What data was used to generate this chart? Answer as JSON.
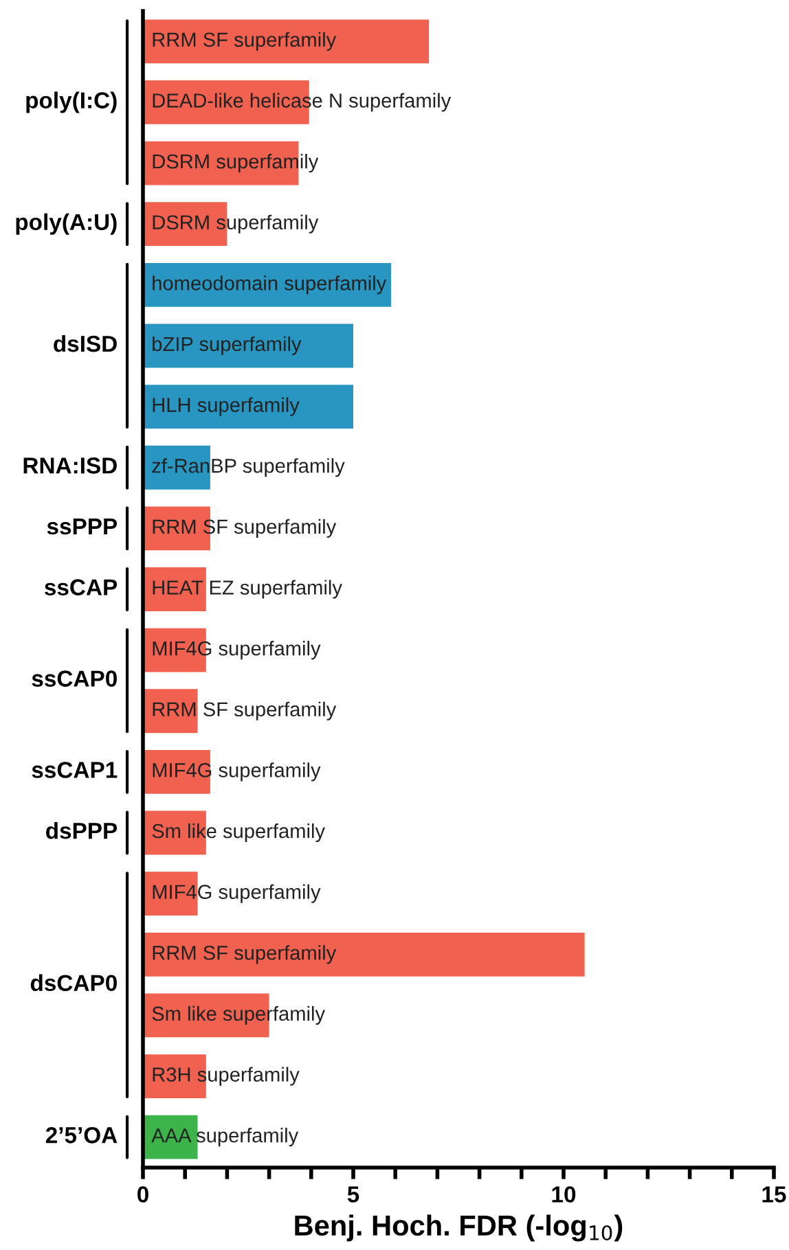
{
  "chart_data": {
    "type": "bar",
    "orientation": "horizontal",
    "xlabel": "Benj. Hoch. FDR (-log$_{10}$)",
    "categories": [
      "RRM SF superfamily",
      "DEAD-like helicase N superfamily",
      "DSRM superfamily",
      "DSRM superfamily",
      "homeodomain superfamily",
      "bZIP superfamily",
      "HLH superfamily",
      "zf-RanBP superfamily",
      "RRM SF superfamily",
      "HEAT EZ superfamily",
      "MIF4G superfamily",
      "RRM SF superfamily",
      "MIF4G superfamily",
      "Sm like superfamily",
      "MIF4G superfamily",
      "RRM SF superfamily",
      "Sm like superfamily",
      "R3H superfamily",
      "AAA superfamily"
    ],
    "series": [
      {
        "name": "poly(I:C)",
        "color": "#f06150",
        "values": [
          6.8,
          3.95,
          3.7,
          null,
          null,
          null,
          null,
          null,
          null,
          null,
          null,
          null,
          null,
          null,
          null,
          null,
          null,
          null,
          null
        ]
      },
      {
        "name": "poly(A:U)",
        "color": "#f06150",
        "values": [
          null,
          null,
          null,
          2.0,
          null,
          null,
          null,
          null,
          null,
          null,
          null,
          null,
          null,
          null,
          null,
          null,
          null,
          null,
          null
        ]
      },
      {
        "name": "dsISD",
        "color": "#2896c0",
        "values": [
          null,
          null,
          null,
          null,
          5.9,
          5.0,
          5.0,
          null,
          null,
          null,
          null,
          null,
          null,
          null,
          null,
          null,
          null,
          null,
          null
        ]
      },
      {
        "name": "RNA:ISD",
        "color": "#2896c0",
        "values": [
          null,
          null,
          null,
          null,
          null,
          null,
          null,
          1.6,
          null,
          null,
          null,
          null,
          null,
          null,
          null,
          null,
          null,
          null,
          null
        ]
      },
      {
        "name": "ssPPP",
        "color": "#f06150",
        "values": [
          null,
          null,
          null,
          null,
          null,
          null,
          null,
          null,
          1.6,
          null,
          null,
          null,
          null,
          null,
          null,
          null,
          null,
          null,
          null
        ]
      },
      {
        "name": "ssCAP",
        "color": "#f06150",
        "values": [
          null,
          null,
          null,
          null,
          null,
          null,
          null,
          null,
          null,
          1.5,
          null,
          null,
          null,
          null,
          null,
          null,
          null,
          null,
          null
        ]
      },
      {
        "name": "ssCAP0",
        "color": "#f06150",
        "values": [
          null,
          null,
          null,
          null,
          null,
          null,
          null,
          null,
          null,
          null,
          1.5,
          1.3,
          null,
          null,
          null,
          null,
          null,
          null,
          null
        ]
      },
      {
        "name": "ssCAP1",
        "color": "#f06150",
        "values": [
          null,
          null,
          null,
          null,
          null,
          null,
          null,
          null,
          null,
          null,
          null,
          null,
          1.6,
          null,
          null,
          null,
          null,
          null,
          null
        ]
      },
      {
        "name": "dsPPP",
        "color": "#f06150",
        "values": [
          null,
          null,
          null,
          null,
          null,
          null,
          null,
          null,
          null,
          null,
          null,
          null,
          null,
          1.5,
          null,
          null,
          null,
          null,
          null
        ]
      },
      {
        "name": "dsCAP0",
        "color": "#f06150",
        "values": [
          null,
          null,
          null,
          null,
          null,
          null,
          null,
          null,
          null,
          null,
          null,
          null,
          null,
          null,
          1.3,
          10.5,
          3.0,
          1.5,
          null
        ]
      },
      {
        "name": "2’5’OA",
        "color": "#3cb44a",
        "values": [
          null,
          null,
          null,
          null,
          null,
          null,
          null,
          null,
          null,
          null,
          null,
          null,
          null,
          null,
          null,
          null,
          null,
          null,
          1.3
        ]
      }
    ],
    "xlim": [
      0,
      15
    ],
    "xticks": [
      0,
      {
        "value": 1,
        "label": null
      },
      {
        "value": 2,
        "label": null
      },
      {
        "value": 3,
        "label": null
      },
      {
        "value": 4,
        "label": null
      },
      5,
      {
        "value": 6,
        "label": null
      },
      {
        "value": 7,
        "label": null
      },
      {
        "value": 8,
        "label": null
      },
      {
        "value": 9,
        "label": null
      },
      10,
      {
        "value": 11,
        "label": null
      },
      {
        "value": 12,
        "label": null
      },
      {
        "value": 13,
        "label": null
      },
      {
        "value": 14,
        "label": null
      },
      15
    ],
    "grid": false,
    "legend": false
  }
}
